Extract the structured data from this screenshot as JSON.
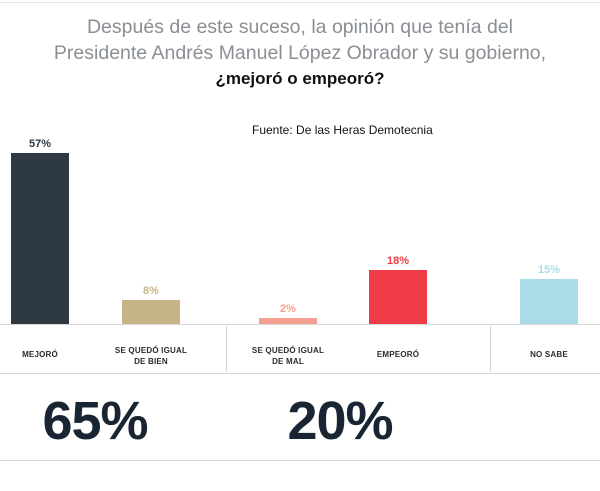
{
  "title": {
    "line1": "Después de este suceso, la opinión que tenía del",
    "line2": "Presidente Andrés Manuel López Obrador y su gobierno,",
    "line3": "¿mejoró o empeoró?"
  },
  "source": "Fuente: De las Heras Demotecnia",
  "totals": [
    {
      "label": "65%"
    },
    {
      "label": "20%"
    }
  ],
  "colors": {
    "mejoro": "#2e3944",
    "igual_bien": "#c6b486",
    "igual_mal": "#f4a090",
    "empeoro": "#ee3b47",
    "no_sabe": "#abdae9"
  },
  "chart_data": {
    "type": "bar",
    "title": "Después de este suceso, la opinión que tenía del Presidente Andrés Manuel López Obrador y su gobierno, ¿mejoró o empeoró?",
    "categories": [
      "MEJORÓ",
      "SE QUEDÓ IGUAL DE BIEN",
      "SE QUEDÓ IGUAL DE MAL",
      "EMPEORÓ",
      "NO SABE"
    ],
    "category_lines": [
      [
        "MEJORÓ"
      ],
      [
        "SE QUEDÓ IGUAL",
        "DE BIEN"
      ],
      [
        "SE QUEDÓ IGUAL",
        "DE MAL"
      ],
      [
        "EMPEORÓ"
      ],
      [
        "NO SABE"
      ]
    ],
    "values": [
      57,
      8,
      2,
      18,
      15
    ],
    "value_labels": [
      "57%",
      "8%",
      "2%",
      "18%",
      "15%"
    ],
    "colors": [
      "#2e3944",
      "#c6b486",
      "#f4a090",
      "#ee3b47",
      "#abdae9"
    ],
    "ylim": [
      0,
      57
    ],
    "grid": false
  }
}
